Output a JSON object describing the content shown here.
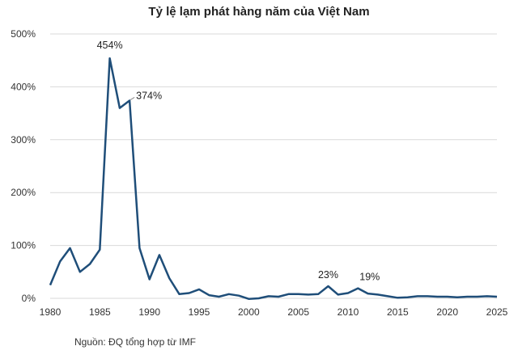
{
  "chart_data": {
    "type": "line",
    "title": "Tỷ lệ lạm phát hàng năm của Việt Nam",
    "source": "Nguồn: ĐQ tổng hợp từ IMF",
    "xlabel": "",
    "ylabel": "",
    "xlim": [
      1980,
      2025
    ],
    "ylim": [
      0,
      500
    ],
    "x_ticks": [
      1980,
      1985,
      1990,
      1995,
      2000,
      2005,
      2010,
      2015,
      2020,
      2025
    ],
    "y_ticks": [
      0,
      100,
      200,
      300,
      400,
      500
    ],
    "y_tick_labels": [
      "0%",
      "100%",
      "200%",
      "300%",
      "400%",
      "500%"
    ],
    "grid": "horizontal",
    "line_color": "#1f4e79",
    "x": [
      1980,
      1981,
      1982,
      1983,
      1984,
      1985,
      1986,
      1987,
      1988,
      1989,
      1990,
      1991,
      1992,
      1993,
      1994,
      1995,
      1996,
      1997,
      1998,
      1999,
      2000,
      2001,
      2002,
      2003,
      2004,
      2005,
      2006,
      2007,
      2008,
      2009,
      2010,
      2011,
      2012,
      2013,
      2014,
      2015,
      2016,
      2017,
      2018,
      2019,
      2020,
      2021,
      2022,
      2023,
      2024,
      2025
    ],
    "values": [
      25,
      70,
      95,
      50,
      65,
      92,
      454,
      360,
      374,
      95,
      36,
      82,
      38,
      8,
      10,
      17,
      6,
      3,
      8,
      5,
      -1,
      0,
      4,
      3,
      8,
      8,
      7,
      8,
      23,
      7,
      10,
      19,
      9,
      7,
      4,
      1,
      2,
      4,
      4,
      3,
      3,
      2,
      3,
      3,
      4,
      3
    ],
    "annotations": [
      {
        "x": 1986,
        "y": 454,
        "text": "454%"
      },
      {
        "x": 1988,
        "y": 374,
        "text": "374%"
      },
      {
        "x": 2008,
        "y": 23,
        "text": "23%"
      },
      {
        "x": 2011,
        "y": 19,
        "text": "19%"
      }
    ]
  }
}
